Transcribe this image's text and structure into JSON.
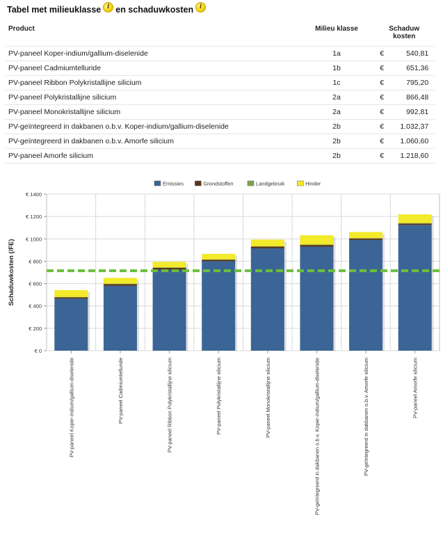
{
  "header": {
    "title_part1": "Tabel met milieuklasse",
    "title_part2": "en schaduwkosten",
    "info_icon_symbol": "i"
  },
  "table": {
    "columns": {
      "product": "Product",
      "class": "Milieu klasse",
      "cost_line1": "Schaduw",
      "cost_line2": "kosten"
    },
    "currency": "€",
    "rows": [
      {
        "product": "PV-paneel Koper-indium/gallium-diselenide",
        "class": "1a",
        "cost": "540,81"
      },
      {
        "product": "PV-paneel Cadmiumtelluride",
        "class": "1b",
        "cost": "651,36"
      },
      {
        "product": "PV-paneel Ribbon Polykristallijne silicium",
        "class": "1c",
        "cost": "795,20"
      },
      {
        "product": "PV-paneel Polykristallijne silicium",
        "class": "2a",
        "cost": "866,48"
      },
      {
        "product": "PV-paneel Monokristallijne silicium",
        "class": "2a",
        "cost": "992,81"
      },
      {
        "product": "PV-geïntegreerd in dakbanen o.b.v. Koper-indium/gallium-diselenide",
        "class": "2b",
        "cost": "1.032,37"
      },
      {
        "product": "PV-geïntegreerd in dakbanen o.b.v. Amorfe silicium",
        "class": "2b",
        "cost": "1.060,60"
      },
      {
        "product": "PV-paneel Amorfe silicium",
        "class": "2b",
        "cost": "1.218,60"
      }
    ]
  },
  "chart_data": {
    "type": "bar",
    "stacked": true,
    "title": "",
    "xlabel": "",
    "ylabel": "Schaduwkosten (/FE)",
    "ylim": [
      0,
      1400
    ],
    "yticks": [
      0,
      200,
      400,
      600,
      800,
      1000,
      1200,
      1400
    ],
    "ytick_labels": [
      "€ 0",
      "€ 200",
      "€ 400",
      "€ 600",
      "€ 800",
      "€ 1000",
      "€ 1200",
      "€ 1400"
    ],
    "grid": true,
    "legend_position": "top-center",
    "categories": [
      "PV-paneel Koper-indium/gallium-diselenide",
      "PV-paneel  Cadmiumtelluride",
      "PV-paneel Ribbon Polykristallijne silicium",
      "PV-paneel Polykristallijne silicium",
      "PV-paneel Monokristallijne silicium",
      "PV-geïntegreerd in dakbanen o.b.v. Koper-indium/gallium-diselenide",
      "PV-geïntegreerd in dakbanen o.b.v. Amorfe silicium",
      "PV-paneel Amorfe silicium"
    ],
    "series": [
      {
        "name": "Emissies",
        "color": "#3b6596",
        "values": [
          465,
          580,
          725,
          800,
          915,
          930,
          990,
          1125
        ]
      },
      {
        "name": "Grondstoffen",
        "color": "#5a3418",
        "values": [
          12,
          15,
          16,
          12,
          15,
          15,
          13,
          12
        ]
      },
      {
        "name": "Landgebruik",
        "color": "#7da34a",
        "values": [
          3,
          4,
          4,
          4,
          4,
          4,
          4,
          4
        ]
      },
      {
        "name": "Hinder",
        "color": "#f2ea2a",
        "values": [
          61,
          52,
          50,
          50,
          59,
          83,
          54,
          78
        ]
      }
    ],
    "reference_line": {
      "value": 715,
      "color": "#6bbf3c",
      "style": "dashed"
    }
  }
}
